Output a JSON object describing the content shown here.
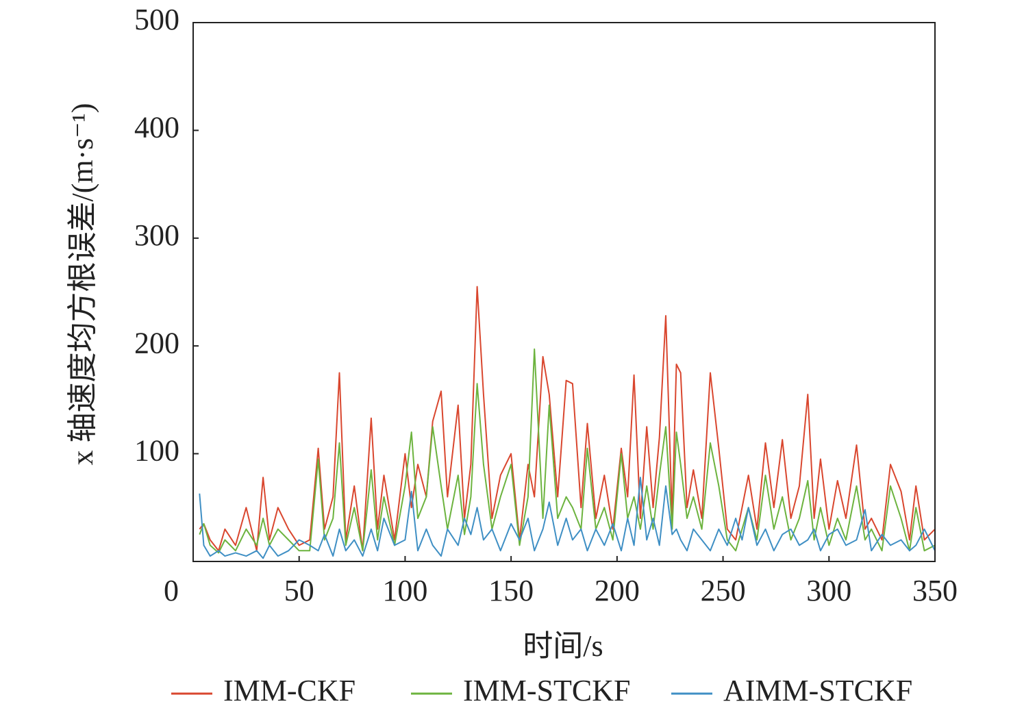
{
  "chart_data": {
    "type": "line",
    "xlabel": "时间/s",
    "ylabel": "x 轴速度均方根误差/(m·s⁻¹)",
    "xlim": [
      0,
      350
    ],
    "xticks": [
      0,
      50,
      100,
      150,
      200,
      250,
      300,
      350
    ],
    "ylim": [
      0,
      500
    ],
    "yticks": [
      100,
      200,
      300,
      400,
      500
    ],
    "legend": "bottom",
    "x": [
      3,
      5,
      8,
      12,
      15,
      20,
      25,
      30,
      33,
      36,
      40,
      45,
      50,
      55,
      59,
      62,
      66,
      69,
      72,
      76,
      80,
      84,
      87,
      90,
      95,
      100,
      103,
      106,
      110,
      113,
      117,
      120,
      125,
      128,
      131,
      134,
      137,
      141,
      145,
      150,
      154,
      158,
      161,
      165,
      168,
      172,
      176,
      179,
      183,
      186,
      190,
      194,
      198,
      202,
      205,
      208,
      211,
      214,
      217,
      220,
      223,
      226,
      228,
      230,
      233,
      236,
      240,
      244,
      248,
      252,
      256,
      259,
      262,
      266,
      270,
      274,
      278,
      282,
      286,
      290,
      293,
      296,
      300,
      304,
      308,
      313,
      317,
      320,
      325,
      329,
      334,
      338,
      341,
      345,
      350
    ],
    "series": [
      {
        "name": "IMM-CKF",
        "color": "#d9462e",
        "values": [
          30,
          35,
          20,
          10,
          30,
          15,
          50,
          10,
          78,
          20,
          50,
          30,
          15,
          20,
          105,
          30,
          60,
          175,
          20,
          70,
          10,
          133,
          30,
          80,
          20,
          100,
          50,
          90,
          60,
          130,
          158,
          60,
          145,
          40,
          90,
          255,
          155,
          40,
          80,
          100,
          20,
          90,
          60,
          190,
          155,
          60,
          168,
          165,
          50,
          128,
          40,
          80,
          30,
          105,
          60,
          173,
          40,
          125,
          50,
          115,
          228,
          40,
          183,
          175,
          50,
          85,
          40,
          175,
          105,
          30,
          20,
          50,
          80,
          30,
          110,
          50,
          113,
          40,
          70,
          155,
          40,
          95,
          30,
          75,
          40,
          108,
          30,
          40,
          20,
          90,
          65,
          20,
          70,
          20,
          30
        ]
      },
      {
        "name": "IMM-STCKF",
        "color": "#6cb33e",
        "values": [
          25,
          35,
          15,
          8,
          20,
          10,
          30,
          15,
          40,
          15,
          30,
          20,
          10,
          10,
          95,
          20,
          40,
          110,
          15,
          50,
          10,
          85,
          20,
          60,
          15,
          70,
          120,
          40,
          60,
          125,
          70,
          30,
          80,
          25,
          60,
          165,
          90,
          30,
          60,
          90,
          15,
          60,
          197,
          40,
          145,
          40,
          60,
          50,
          30,
          105,
          30,
          50,
          20,
          100,
          40,
          60,
          30,
          70,
          30,
          80,
          125,
          30,
          120,
          90,
          40,
          60,
          30,
          110,
          70,
          20,
          10,
          30,
          50,
          20,
          80,
          30,
          60,
          20,
          40,
          75,
          20,
          50,
          15,
          40,
          20,
          70,
          20,
          30,
          10,
          70,
          40,
          10,
          50,
          10,
          15
        ]
      },
      {
        "name": "AIMM-STCKF",
        "color": "#3f8fc4",
        "values": [
          63,
          15,
          5,
          10,
          5,
          8,
          5,
          10,
          3,
          15,
          5,
          10,
          20,
          15,
          10,
          25,
          5,
          30,
          10,
          20,
          5,
          30,
          10,
          40,
          15,
          20,
          65,
          10,
          30,
          15,
          5,
          30,
          15,
          40,
          25,
          50,
          20,
          30,
          10,
          35,
          20,
          40,
          10,
          30,
          55,
          15,
          40,
          20,
          30,
          10,
          30,
          15,
          35,
          10,
          40,
          15,
          78,
          20,
          40,
          15,
          70,
          25,
          30,
          20,
          10,
          30,
          20,
          10,
          30,
          15,
          40,
          20,
          50,
          15,
          30,
          10,
          25,
          30,
          15,
          20,
          30,
          10,
          25,
          30,
          15,
          20,
          48,
          10,
          25,
          15,
          20,
          10,
          15,
          30,
          10
        ]
      }
    ]
  }
}
